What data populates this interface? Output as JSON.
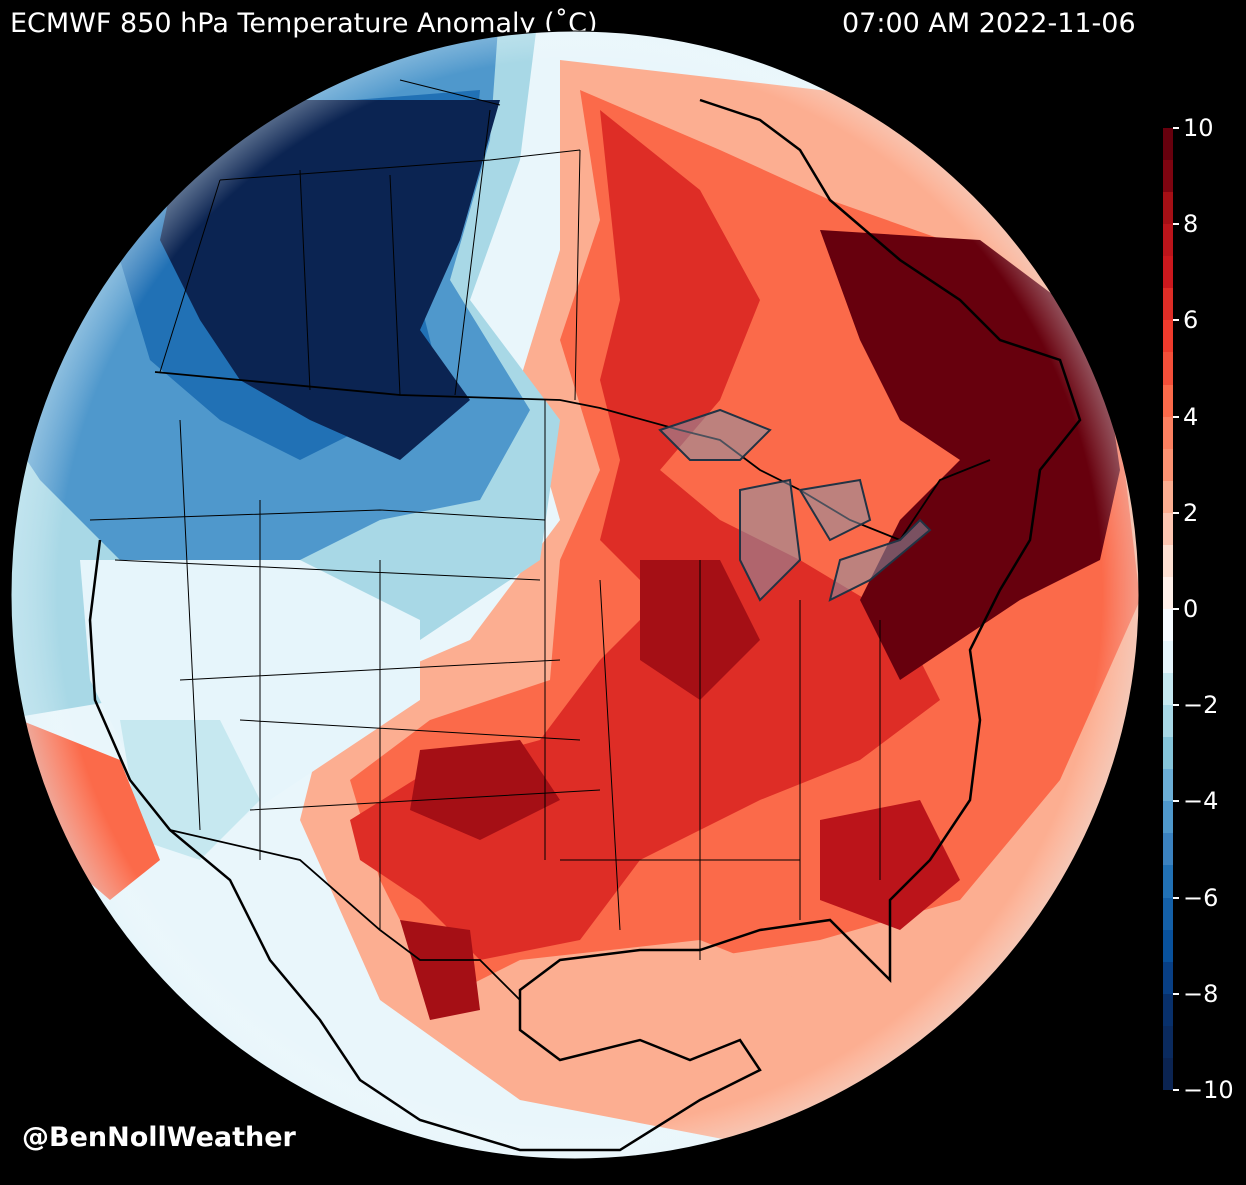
{
  "header": {
    "title": "ECMWF 850 hPa Temperature Anomaly (˚C)",
    "valid_time": "07:00 AM 2022-11-06"
  },
  "colorbar": {
    "min": -10,
    "max": 10,
    "tick_labels": [
      "10",
      "8",
      "6",
      "4",
      "2",
      "0",
      "−2",
      "−4",
      "−6",
      "−8",
      "−10"
    ],
    "tick_values": [
      10,
      8,
      6,
      4,
      2,
      0,
      -2,
      -4,
      -6,
      -8,
      -10
    ],
    "colors_top_to_bottom": [
      "#67000d",
      "#7e0410",
      "#a50f15",
      "#bb141a",
      "#cb181d",
      "#de2d26",
      "#ef3b2c",
      "#f44f39",
      "#fb6a4a",
      "#fc8060",
      "#fc9272",
      "#fcae91",
      "#fdc5b1",
      "#fee0d2",
      "#fff0ea",
      "#f7fbff",
      "#e6f5fb",
      "#c6e8f0",
      "#a8d8e6",
      "#85c4da",
      "#6baed6",
      "#4f98cc",
      "#3b82c0",
      "#2171b5",
      "#1460a8",
      "#08519c",
      "#083f85",
      "#08306b",
      "#0a2a5e",
      "#0b2452"
    ]
  },
  "map": {
    "projection": "orthographic",
    "coverage": "North America",
    "overlays": [
      "coastlines",
      "national-borders",
      "state-province-borders",
      "lakes"
    ]
  },
  "watermark": "@BenNollWeather"
}
